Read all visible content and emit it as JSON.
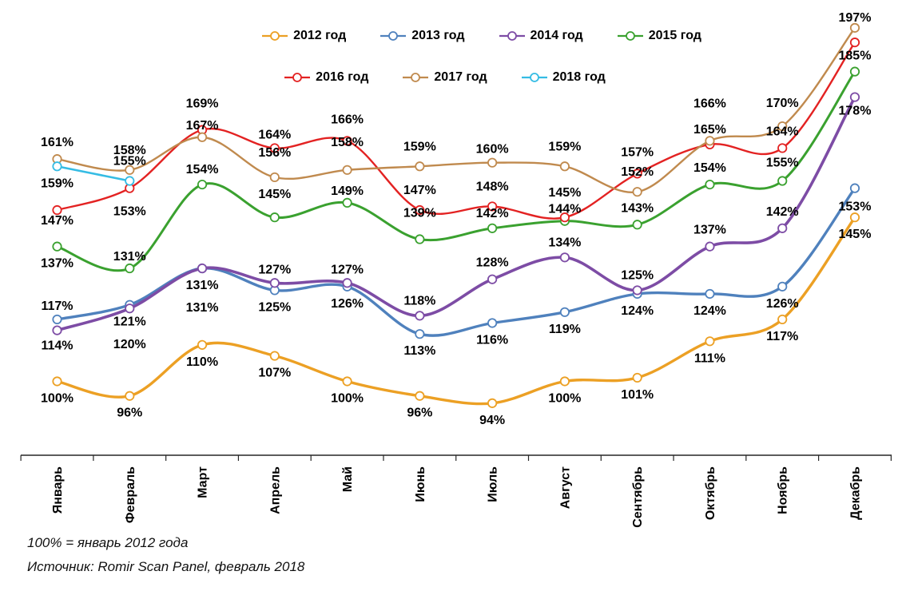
{
  "chart_data": {
    "type": "line",
    "title": "",
    "categories": [
      "Январь",
      "Февраль",
      "Март",
      "Апрель",
      "Май",
      "Июнь",
      "Июль",
      "Август",
      "Сентябрь",
      "Октябрь",
      "Ноябрь",
      "Декабрь"
    ],
    "unit": "%",
    "ylim": [
      90,
      200
    ],
    "grid": false,
    "y_axis_visible": false,
    "legend_position": "top",
    "note": "100% = январь 2012 года",
    "source": "Источник: Romir Scan Panel, февраль 2018",
    "series": [
      {
        "name": "2012 год",
        "color": "#ECA024",
        "width": 3.4,
        "values": [
          100,
          96,
          110,
          107,
          100,
          96,
          94,
          100,
          101,
          111,
          117,
          145
        ],
        "labels": [
          "100%",
          "96%",
          "110%",
          "107%",
          "100%",
          "96%",
          "94%",
          "100%",
          "101%",
          "111%",
          "117%",
          "145%"
        ],
        "label_dy": [
          26,
          26,
          26,
          26,
          26,
          26,
          26,
          26,
          26,
          26,
          26,
          26
        ]
      },
      {
        "name": "2013 год",
        "color": "#4F81BD",
        "width": 3.4,
        "values": [
          117,
          121,
          131,
          125,
          126,
          113,
          116,
          119,
          124,
          124,
          126,
          153
        ],
        "labels": [
          "117%",
          "121%",
          "131%",
          "125%",
          "126%",
          "113%",
          "116%",
          "119%",
          "124%",
          "124%",
          "126%",
          "153%"
        ],
        "label_dy": [
          -12,
          26,
          26,
          26,
          26,
          26,
          26,
          26,
          26,
          26,
          26,
          28
        ]
      },
      {
        "name": "2014 год",
        "color": "#7D4CA5",
        "width": 3.6,
        "values": [
          114,
          120,
          131,
          127,
          127,
          118,
          128,
          134,
          125,
          137,
          142,
          178
        ],
        "labels": [
          "114%",
          "120%",
          "131%",
          "127%",
          "127%",
          "118%",
          "128%",
          "134%",
          "125%",
          "137%",
          "142%",
          "178%"
        ],
        "label_dy": [
          24,
          50,
          54,
          -12,
          -12,
          -14,
          -16,
          -14,
          -14,
          -16,
          -16,
          22
        ]
      },
      {
        "name": "2015 год",
        "color": "#3AA12F",
        "width": 3.0,
        "values": [
          137,
          131,
          154,
          145,
          149,
          139,
          142,
          144,
          143,
          154,
          155,
          185
        ],
        "labels": [
          "137%",
          "131%",
          "154%",
          "145%",
          "149%",
          "139%",
          "142%",
          "144%",
          "143%",
          "154%",
          "155%",
          "185%"
        ],
        "label_dy": [
          26,
          -10,
          -14,
          -24,
          -10,
          -28,
          -14,
          -10,
          -16,
          -16,
          -18,
          -15
        ]
      },
      {
        "name": "2016 год",
        "color": "#E32222",
        "width": 2.4,
        "values": [
          147,
          153,
          169,
          164,
          166,
          147,
          148,
          145,
          157,
          165,
          164,
          193
        ],
        "labels": [
          "147%",
          "153%",
          "169%",
          "164%",
          "166%",
          "147%",
          "148%",
          "145%",
          "157%",
          "165%",
          "164%",
          ""
        ],
        "label_dy": [
          18,
          34,
          -28,
          -12,
          -22,
          -20,
          -20,
          -26,
          -22,
          -14,
          -16,
          0
        ]
      },
      {
        "name": "2017 год",
        "color": "#C08A4E",
        "width": 2.4,
        "values": [
          161,
          158,
          167,
          156,
          158,
          159,
          160,
          159,
          152,
          166,
          170,
          197
        ],
        "labels": [
          "161%",
          "158%",
          "167%",
          "156%",
          "158%",
          "159%",
          "160%",
          "159%",
          "152%",
          "166%",
          "170%",
          "197%"
        ],
        "label_dy": [
          -16,
          -20,
          -10,
          -26,
          -30,
          -20,
          -12,
          -20,
          -20,
          -42,
          -24,
          -8
        ]
      },
      {
        "name": "2018 год",
        "color": "#35BCE4",
        "width": 2.6,
        "values": [
          159,
          155
        ],
        "labels": [
          "159%",
          "155%"
        ],
        "label_dy": [
          26,
          -20
        ]
      }
    ]
  }
}
